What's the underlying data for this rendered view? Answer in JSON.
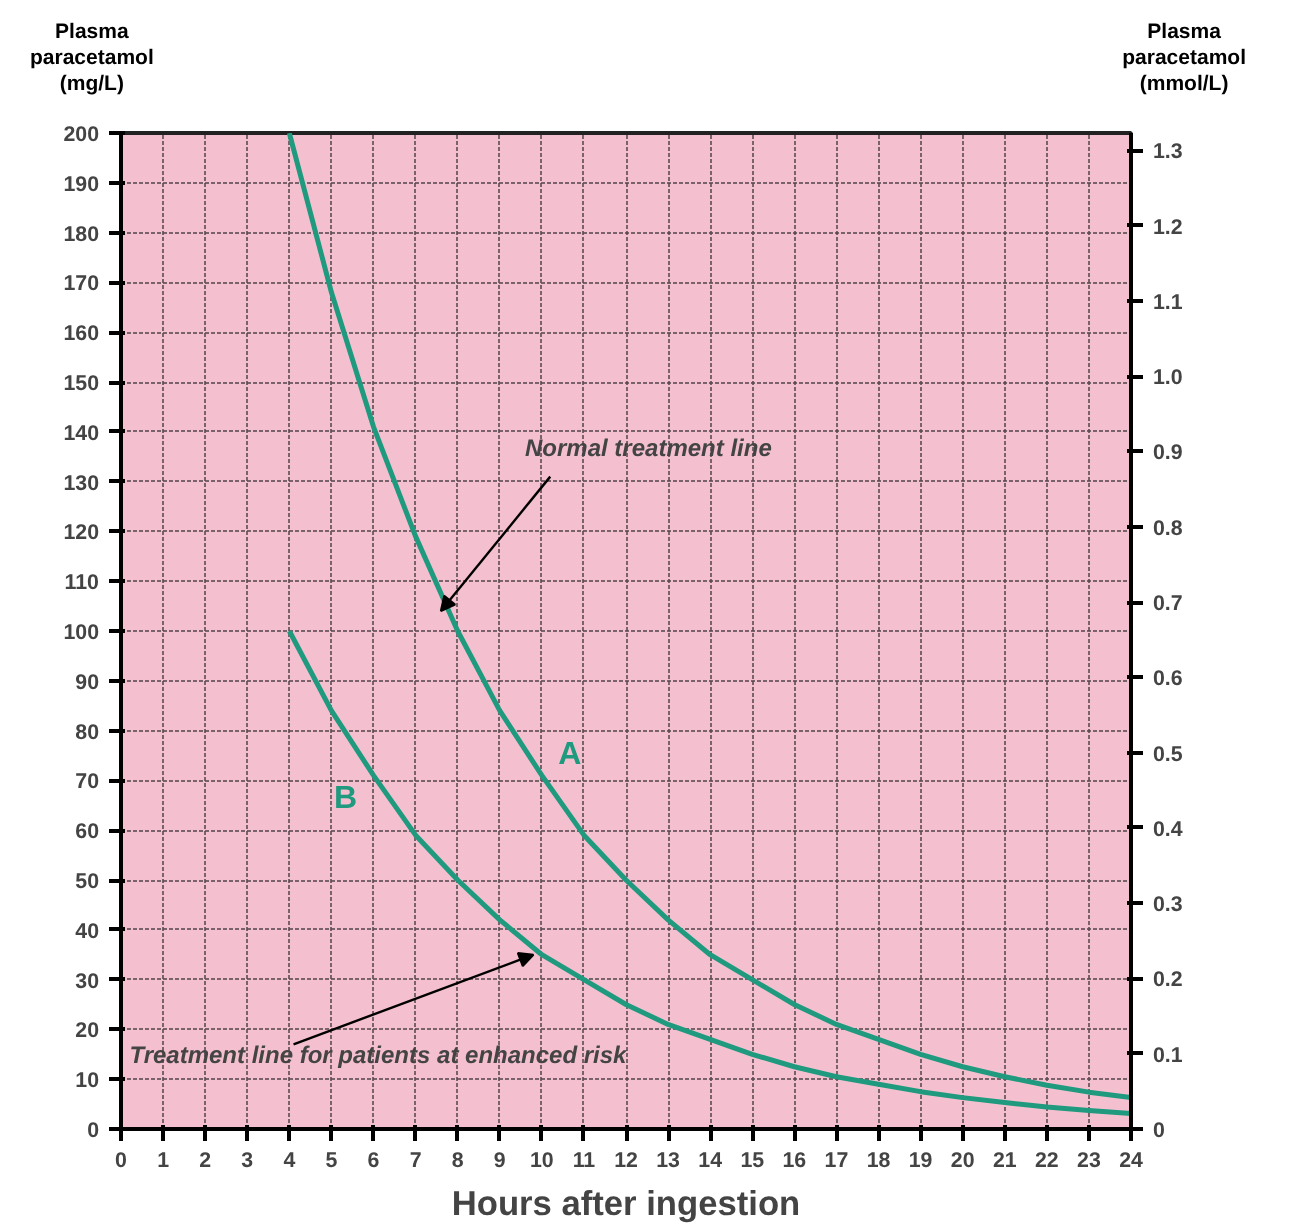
{
  "chart_data": {
    "type": "line",
    "xlabel": "Hours after ingestion",
    "ylabel": "Plasma paracetamol (mg/L)",
    "y2label": "Plasma paracetamol (mmol/L)",
    "x": [
      4,
      5,
      6,
      7,
      8,
      9,
      10,
      11,
      12,
      13,
      14,
      15,
      16,
      17,
      18,
      19,
      20,
      21,
      22,
      23,
      24
    ],
    "series": [
      {
        "name": "A",
        "color": "#1f9a7e",
        "values": [
          200,
          168,
          141,
          119,
          100,
          84,
          71,
          59,
          50,
          42,
          35,
          30,
          25,
          21,
          18,
          15,
          12.5,
          10.5,
          8.8,
          7.4,
          6.3
        ]
      },
      {
        "name": "B",
        "color": "#1f9a7e",
        "values": [
          100,
          84,
          71,
          59,
          50,
          42,
          35,
          30,
          25,
          21,
          18,
          15,
          12.5,
          10.5,
          9,
          7.5,
          6.3,
          5.3,
          4.4,
          3.7,
          3.1
        ]
      }
    ],
    "xlim": [
      0,
      24
    ],
    "xticks": [
      0,
      1,
      2,
      3,
      4,
      5,
      6,
      7,
      8,
      9,
      10,
      11,
      12,
      13,
      14,
      15,
      16,
      17,
      18,
      19,
      20,
      21,
      22,
      23,
      24
    ],
    "ylim": [
      0,
      200
    ],
    "yticks": [
      0,
      10,
      20,
      30,
      40,
      50,
      60,
      70,
      80,
      90,
      100,
      110,
      120,
      130,
      140,
      150,
      160,
      170,
      180,
      190,
      200
    ],
    "y2lim": [
      0,
      1.323
    ],
    "y2ticks": [
      0,
      0.1,
      0.2,
      0.3,
      0.4,
      0.5,
      0.6,
      0.7,
      0.8,
      0.9,
      {
        "value": 1,
        "label": "1.0"
      },
      1.1,
      1.2,
      1.3
    ],
    "annotations": [
      {
        "text": "Normal treatment line",
        "x": 7.6,
        "y": 104
      },
      {
        "text": "Treatment line for patients at enhanced risk",
        "x": 9.8,
        "y": 35
      }
    ],
    "grid": true,
    "line_style": "solid",
    "marker": "none"
  }
}
